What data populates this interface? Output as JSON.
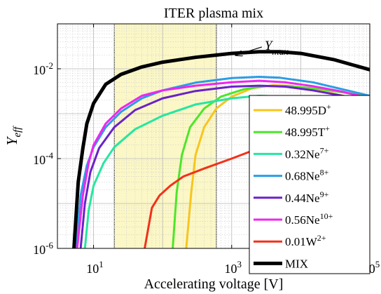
{
  "chart_data": {
    "type": "line",
    "title": "ITER plasma mix",
    "xlabel": "Accelerating voltage [V]",
    "ylabel_main": "Y",
    "ylabel_sub": "eff",
    "xscale": "log",
    "yscale": "log",
    "xlim": [
      3,
      100000
    ],
    "ylim": [
      1e-06,
      0.1
    ],
    "grid": true,
    "x_ticks": [
      {
        "value": 10,
        "base": "10",
        "exp": "1"
      },
      {
        "value": 1000,
        "base": "10",
        "exp": "3"
      },
      {
        "value": 100000,
        "base": "10",
        "exp": "5"
      }
    ],
    "y_ticks": [
      {
        "value": 1e-06,
        "base": "10",
        "exp": "-6"
      },
      {
        "value": 0.0001,
        "base": "10",
        "exp": "-4"
      },
      {
        "value": 0.01,
        "base": "10",
        "exp": "-2"
      }
    ],
    "highlight_region": {
      "x_from": 20,
      "x_to": 600,
      "color": "#fbf7c6"
    },
    "annotation": {
      "main": "Y",
      "sub": "max",
      "x": 3000,
      "y": 0.0265,
      "arrow_to_x": 1150,
      "arrow_to_y": 0.02
    },
    "legend_position": "bottom-right",
    "series": [
      {
        "name": "48.995D",
        "sup": "+",
        "color": "#f7c51f",
        "width": 3,
        "points": [
          [
            220,
            1e-06
          ],
          [
            260,
            1.8e-05
          ],
          [
            300,
            0.00012
          ],
          [
            400,
            0.0005
          ],
          [
            600,
            0.0013
          ],
          [
            1000,
            0.0024
          ],
          [
            2000,
            0.0037
          ],
          [
            4000,
            0.0043
          ],
          [
            7000,
            0.0042
          ],
          [
            15000,
            0.0036
          ],
          [
            30000,
            0.0028
          ],
          [
            60000,
            0.0022
          ],
          [
            100000,
            0.0018
          ]
        ]
      },
      {
        "name": "48.995T",
        "sup": "+",
        "color": "#4de62a",
        "width": 3,
        "points": [
          [
            140,
            1e-06
          ],
          [
            160,
            1.8e-05
          ],
          [
            190,
            0.00012
          ],
          [
            250,
            0.0005
          ],
          [
            400,
            0.0013
          ],
          [
            700,
            0.0024
          ],
          [
            1500,
            0.0035
          ],
          [
            3000,
            0.0041
          ],
          [
            6000,
            0.0041
          ],
          [
            15000,
            0.0037
          ],
          [
            35000,
            0.0031
          ],
          [
            100000,
            0.0024
          ]
        ]
      },
      {
        "name": "0.32Ne",
        "sup": "7+",
        "color": "#26e6a0",
        "width": 3,
        "points": [
          [
            7.5,
            1e-06
          ],
          [
            8.5,
            7e-06
          ],
          [
            10,
            2.5e-05
          ],
          [
            14,
            8e-05
          ],
          [
            20,
            0.00018
          ],
          [
            40,
            0.00045
          ],
          [
            100,
            0.0009
          ],
          [
            300,
            0.0016
          ],
          [
            1000,
            0.0022
          ],
          [
            2500,
            0.0025
          ],
          [
            6000,
            0.0024
          ],
          [
            20000,
            0.0019
          ],
          [
            50000,
            0.0015
          ],
          [
            100000,
            0.0012
          ]
        ]
      },
      {
        "name": "0.68Ne",
        "sup": "8+",
        "color": "#2a9de6",
        "width": 3,
        "points": [
          [
            5.6,
            1e-06
          ],
          [
            6.5,
            1.5e-05
          ],
          [
            8,
            7e-05
          ],
          [
            10,
            0.00018
          ],
          [
            15,
            0.0005
          ],
          [
            25,
            0.0011
          ],
          [
            50,
            0.0022
          ],
          [
            100,
            0.0033
          ],
          [
            300,
            0.0049
          ],
          [
            1000,
            0.0062
          ],
          [
            2500,
            0.0066
          ],
          [
            5000,
            0.0063
          ],
          [
            15000,
            0.005
          ],
          [
            40000,
            0.0035
          ],
          [
            100000,
            0.0025
          ]
        ]
      },
      {
        "name": "0.44Ne",
        "sup": "9+",
        "color": "#6a22c8",
        "width": 3,
        "points": [
          [
            6.5,
            1e-06
          ],
          [
            7.5,
            1e-05
          ],
          [
            9,
            5e-05
          ],
          [
            12,
            0.00017
          ],
          [
            20,
            0.0005
          ],
          [
            40,
            0.0012
          ],
          [
            100,
            0.0022
          ],
          [
            300,
            0.0032
          ],
          [
            1000,
            0.004
          ],
          [
            2500,
            0.0042
          ],
          [
            6000,
            0.004
          ],
          [
            15000,
            0.0033
          ],
          [
            40000,
            0.0025
          ],
          [
            100000,
            0.002
          ]
        ]
      },
      {
        "name": "0.56Ne",
        "sup": "10+",
        "color": "#ee26ee",
        "width": 3,
        "points": [
          [
            5.8,
            1e-06
          ],
          [
            7,
            1.5e-05
          ],
          [
            8.5,
            8e-05
          ],
          [
            10,
            0.0002
          ],
          [
            15,
            0.0006
          ],
          [
            25,
            0.0013
          ],
          [
            50,
            0.0025
          ],
          [
            100,
            0.0033
          ],
          [
            300,
            0.0042
          ],
          [
            1000,
            0.005
          ],
          [
            2500,
            0.0054
          ],
          [
            6000,
            0.005
          ],
          [
            15000,
            0.0041
          ],
          [
            40000,
            0.0031
          ],
          [
            100000,
            0.0022
          ]
        ]
      },
      {
        "name": "0.01W",
        "sup": "2+",
        "color": "#f2301a",
        "width": 3,
        "points": [
          [
            55,
            1e-06
          ],
          [
            70,
            8e-06
          ],
          [
            90,
            1.5e-05
          ],
          [
            130,
            2.5e-05
          ],
          [
            200,
            4e-05
          ],
          [
            400,
            6e-05
          ],
          [
            1000,
            0.0001
          ],
          [
            3000,
            0.00019
          ],
          [
            10000,
            0.00035
          ],
          [
            30000,
            0.00055
          ],
          [
            100000,
            0.0007
          ]
        ]
      },
      {
        "name": "MIX",
        "sup": "",
        "color": "#000000",
        "width": 5,
        "points": [
          [
            5.2,
            1e-06
          ],
          [
            6,
            3e-05
          ],
          [
            7,
            0.00017
          ],
          [
            8,
            0.0006
          ],
          [
            10,
            0.0017
          ],
          [
            15,
            0.0045
          ],
          [
            25,
            0.0075
          ],
          [
            50,
            0.011
          ],
          [
            100,
            0.014
          ],
          [
            300,
            0.018
          ],
          [
            1000,
            0.022
          ],
          [
            2500,
            0.024
          ],
          [
            5000,
            0.024
          ],
          [
            10000,
            0.022
          ],
          [
            30000,
            0.016
          ],
          [
            100000,
            0.0095
          ]
        ]
      }
    ]
  }
}
